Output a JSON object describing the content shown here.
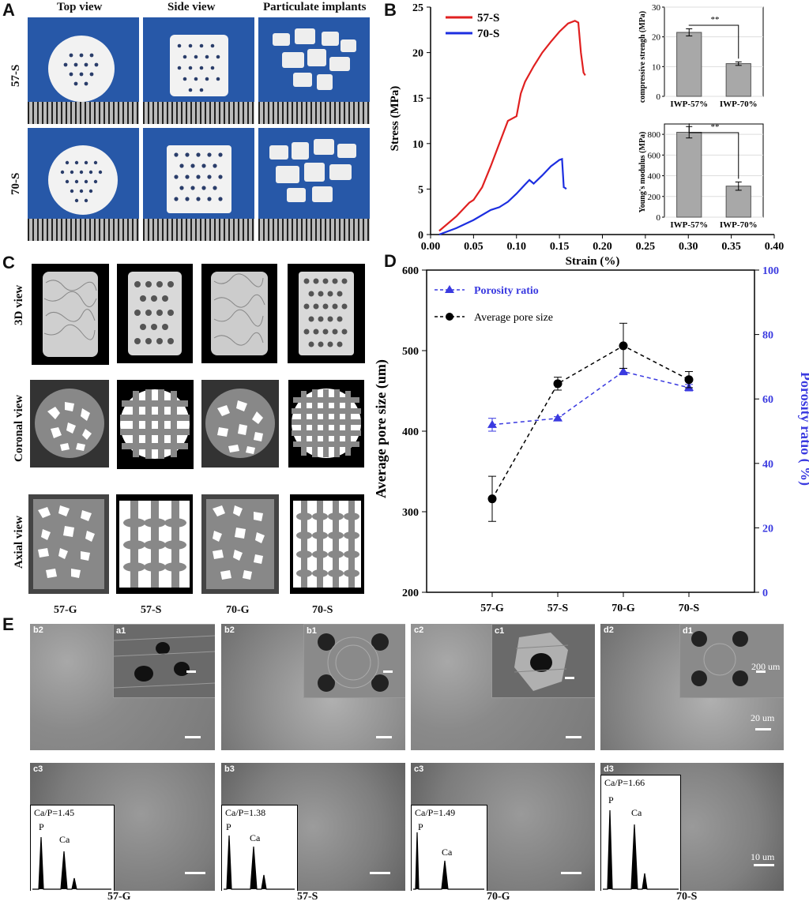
{
  "panels": {
    "A": "A",
    "B": "B",
    "C": "C",
    "D": "D",
    "E": "E"
  },
  "panelA": {
    "col_headers": [
      "Top view",
      "Side view",
      "Particulate implants"
    ],
    "row_labels": [
      "57-S",
      "70-S"
    ]
  },
  "panelB": {
    "legend": [
      "57-S",
      "70-S"
    ],
    "xlabel": "Strain (%)",
    "ylabel": "Stress (MPa)",
    "inset1": {
      "ylabel": "compressive strengh (MPa)",
      "categories": [
        "IWP-57%",
        "IWP-70%"
      ],
      "sig": "**"
    },
    "inset2": {
      "ylabel": "Young's modulus (MPa)",
      "categories": [
        "IWP-57%",
        "IWP-70%"
      ],
      "sig": "**"
    }
  },
  "panelC": {
    "row_labels": [
      "3D view",
      "Coronal view",
      "Axial view"
    ],
    "col_labels": [
      "57-G",
      "57-S",
      "70-G",
      "70-S"
    ]
  },
  "panelD": {
    "legend": [
      "Porosity ratio",
      "Average pore size"
    ],
    "ylabel_left": "Average pore size (um)",
    "ylabel_right": "Porosity ratio ( %)"
  },
  "panelE": {
    "top_tags": [
      [
        "b2",
        "a1"
      ],
      [
        "b2",
        "b1"
      ],
      [
        "c2",
        "c1"
      ],
      [
        "d2",
        "d1"
      ]
    ],
    "bottom_tags": [
      "c3",
      "b3",
      "c3",
      "d3"
    ],
    "ca_p": [
      "Ca/P=1.45",
      "Ca/P=1.38",
      "Ca/P=1.49",
      "Ca/P=1.66"
    ],
    "peak_P": "P",
    "peak_Ca": "Ca",
    "scale_200": "200 um",
    "scale_20": "20 um",
    "scale_10": "10 um",
    "group_labels": [
      "57-G",
      "57-S",
      "70-G",
      "70-S"
    ]
  },
  "chart_data": [
    {
      "type": "line",
      "title": "",
      "xlabel": "Strain (%)",
      "ylabel": "Stress (MPa)",
      "xlim": [
        0.0,
        0.4
      ],
      "ylim": [
        0,
        25
      ],
      "xticks": [
        "0.00",
        "0.05",
        "0.10",
        "0.15",
        "0.20",
        "0.25",
        "0.30",
        "0.35",
        "0.40"
      ],
      "yticks": [
        "0",
        "5",
        "10",
        "15",
        "20",
        "25"
      ],
      "series": [
        {
          "name": "57-S",
          "color": "#e02020",
          "x": [
            0.01,
            0.03,
            0.045,
            0.05,
            0.06,
            0.07,
            0.08,
            0.09,
            0.1,
            0.105,
            0.11,
            0.12,
            0.13,
            0.14,
            0.15,
            0.16,
            0.168,
            0.172,
            0.175,
            0.178,
            0.18
          ],
          "y": [
            0.4,
            2.0,
            3.5,
            3.8,
            5.2,
            7.5,
            10.0,
            12.5,
            13.0,
            15.5,
            16.8,
            18.5,
            20.0,
            21.2,
            22.3,
            23.2,
            23.5,
            23.3,
            20.0,
            17.8,
            17.5
          ]
        },
        {
          "name": "70-S",
          "color": "#1c2ee0",
          "x": [
            0.01,
            0.03,
            0.05,
            0.07,
            0.08,
            0.09,
            0.1,
            0.11,
            0.115,
            0.12,
            0.13,
            0.14,
            0.15,
            0.153,
            0.155,
            0.157,
            0.158
          ],
          "y": [
            0.0,
            0.7,
            1.6,
            2.7,
            3.0,
            3.6,
            4.5,
            5.5,
            6.0,
            5.6,
            6.5,
            7.5,
            8.2,
            8.3,
            5.2,
            5.1,
            5.0
          ]
        }
      ]
    },
    {
      "type": "bar",
      "title": "",
      "ylabel": "compressive strengh (MPa)",
      "categories": [
        "IWP-57%",
        "IWP-70%"
      ],
      "values": [
        21.5,
        11.0
      ],
      "errors": [
        1.2,
        0.6
      ],
      "ylim": [
        0,
        30
      ],
      "yticks": [
        "0",
        "10",
        "20",
        "30"
      ]
    },
    {
      "type": "bar",
      "title": "",
      "ylabel": "Young's modulus (MPa)",
      "categories": [
        "IWP-57%",
        "IWP-70%"
      ],
      "values": [
        820,
        300
      ],
      "errors": [
        55,
        40
      ],
      "ylim": [
        0,
        900
      ],
      "yticks": [
        "0",
        "200",
        "400",
        "600",
        "800"
      ]
    },
    {
      "type": "line",
      "title": "",
      "categories": [
        "57-G",
        "57-S",
        "70-G",
        "70-S"
      ],
      "ylabel": "Average pore size (um)",
      "y2label": "Porosity ratio ( %)",
      "ylim": [
        200,
        600
      ],
      "y2lim": [
        0,
        100
      ],
      "yticks": [
        "200",
        "300",
        "400",
        "500",
        "600"
      ],
      "y2ticks": [
        "0",
        "20",
        "40",
        "60",
        "80",
        "100"
      ],
      "series": [
        {
          "name": "Porosity ratio",
          "axis": "right",
          "color": "#3a3ae0",
          "values": [
            52,
            54,
            68.5,
            63.5
          ],
          "errors": [
            2,
            0.5,
            1,
            1
          ]
        },
        {
          "name": "Average pore size",
          "axis": "left",
          "color": "#000000",
          "values": [
            316,
            459,
            506,
            464
          ],
          "errors": [
            28,
            8,
            28,
            10
          ]
        }
      ]
    }
  ]
}
